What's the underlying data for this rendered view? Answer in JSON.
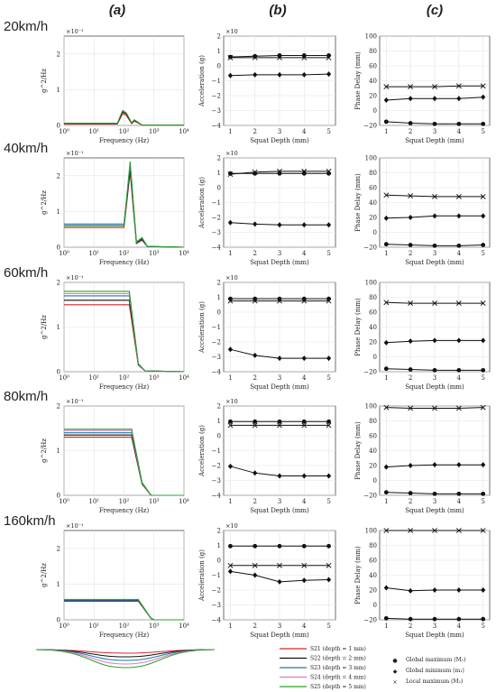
{
  "column_headers": [
    "(a)",
    "(b)",
    "(c)"
  ],
  "row_labels": [
    "20km/h",
    "40km/h",
    "60km/h",
    "80km/h",
    "160km/h"
  ],
  "axes": {
    "a": {
      "xlabel": "Frequency (Hz)",
      "ylabel": "g^2/Hz",
      "exponent": "×10⁻¹",
      "yticks": [
        "0",
        "1",
        "2"
      ],
      "xticks": [
        "10⁰",
        "10¹",
        "10²",
        "10³",
        "10⁴"
      ]
    },
    "b": {
      "xlabel": "Squat Depth (mm)",
      "ylabel": "Acceleration (g)",
      "exponent": "×10",
      "yticks": [
        "−4",
        "−3",
        "−2",
        "−1",
        "0",
        "1",
        "2"
      ],
      "xticks": [
        "1",
        "2",
        "3",
        "4",
        "5"
      ]
    },
    "c": {
      "xlabel": "Squat Depth (mm)",
      "ylabel": "Phase Delay (mm)",
      "yticks": [
        "−20",
        "0",
        "20",
        "40",
        "60",
        "80",
        "100"
      ],
      "xticks": [
        "1",
        "2",
        "3",
        "4",
        "5"
      ]
    }
  },
  "legend": {
    "series": [
      {
        "label": "S21 (depth = 1 mm)",
        "color": "#d62728"
      },
      {
        "label": "S22 (depth = 2 mm)",
        "color": "#111111"
      },
      {
        "label": "S23 (depth = 3 mm)",
        "color": "#1f77b4"
      },
      {
        "label": "S24 (depth = 4 mm)",
        "color": "#e377c2"
      },
      {
        "label": "S25 (depth = 5 mm)",
        "color": "#2ca02c"
      }
    ],
    "markers": [
      {
        "symbol": "●",
        "label": "Global maximum (M₁)"
      },
      {
        "symbol": "◆",
        "label": "Global minimum (m₁)"
      },
      {
        "symbol": "×",
        "label": "Local maximum (M₂)"
      }
    ]
  },
  "chart_data": [
    {
      "type": "line",
      "panel": "(a) 20km/h",
      "xscale": "log",
      "xlim": [
        1,
        10000
      ],
      "ylim": [
        0,
        2.5
      ],
      "series": [
        {
          "name": "S21 (depth = 1 mm)",
          "x": [
            1,
            60,
            90,
            120,
            180,
            220,
            400,
            10000
          ],
          "y": [
            0.04,
            0.04,
            0.33,
            0.28,
            0.05,
            0.12,
            0.01,
            0.01
          ]
        },
        {
          "name": "S22 (depth = 2 mm)",
          "x": [
            1,
            60,
            90,
            120,
            180,
            220,
            400,
            10000
          ],
          "y": [
            0.05,
            0.05,
            0.38,
            0.32,
            0.06,
            0.15,
            0.01,
            0.01
          ]
        },
        {
          "name": "S25 (depth = 5 mm)",
          "x": [
            1,
            60,
            90,
            120,
            180,
            220,
            400,
            10000
          ],
          "y": [
            0.06,
            0.06,
            0.42,
            0.35,
            0.07,
            0.16,
            0.01,
            0.01
          ]
        }
      ]
    },
    {
      "type": "line",
      "panel": "(a) 40km/h",
      "xscale": "log",
      "xlim": [
        1,
        10000
      ],
      "ylim": [
        0,
        2.5
      ],
      "series": [
        {
          "name": "S21 (depth = 1 mm)",
          "x": [
            1,
            100,
            160,
            260,
            400,
            600,
            10000
          ],
          "y": [
            0.55,
            0.55,
            2.1,
            0.1,
            0.2,
            0.02,
            0.0
          ]
        },
        {
          "name": "S22 (depth = 2 mm)",
          "x": [
            1,
            100,
            160,
            260,
            400,
            600,
            10000
          ],
          "y": [
            0.6,
            0.6,
            2.2,
            0.12,
            0.22,
            0.02,
            0.0
          ]
        },
        {
          "name": "S23 (depth = 3 mm)",
          "x": [
            1,
            100,
            160,
            260,
            400,
            600,
            10000
          ],
          "y": [
            0.65,
            0.65,
            2.3,
            0.13,
            0.25,
            0.02,
            0.0
          ]
        },
        {
          "name": "S25 (depth = 5 mm)",
          "x": [
            1,
            100,
            160,
            260,
            400,
            600,
            10000
          ],
          "y": [
            0.6,
            0.6,
            2.4,
            0.15,
            0.27,
            0.02,
            0.0
          ]
        }
      ]
    },
    {
      "type": "line",
      "panel": "(a) 60km/h",
      "xscale": "log",
      "xlim": [
        1,
        10000
      ],
      "ylim": [
        0,
        2.0
      ],
      "series": [
        {
          "name": "S21 (depth = 1 mm)",
          "x": [
            1,
            150,
            300,
            500,
            10000
          ],
          "y": [
            1.5,
            1.5,
            0.15,
            0.02,
            0.0
          ]
        },
        {
          "name": "S22 (depth = 2 mm)",
          "x": [
            1,
            150,
            300,
            500,
            10000
          ],
          "y": [
            1.6,
            1.6,
            0.16,
            0.02,
            0.0
          ]
        },
        {
          "name": "S23 (depth = 3 mm)",
          "x": [
            1,
            150,
            300,
            500,
            10000
          ],
          "y": [
            1.7,
            1.7,
            0.17,
            0.02,
            0.0
          ]
        },
        {
          "name": "S24 (depth = 4 mm)",
          "x": [
            1,
            150,
            300,
            500,
            10000
          ],
          "y": [
            1.75,
            1.75,
            0.18,
            0.02,
            0.0
          ]
        },
        {
          "name": "S25 (depth = 5 mm)",
          "x": [
            1,
            150,
            300,
            500,
            10000
          ],
          "y": [
            1.8,
            1.8,
            0.18,
            0.02,
            0.0
          ]
        }
      ]
    },
    {
      "type": "line",
      "panel": "(a) 80km/h",
      "xscale": "log",
      "xlim": [
        1,
        10000
      ],
      "ylim": [
        0,
        2.0
      ],
      "series": [
        {
          "name": "S21 (depth = 1 mm)",
          "x": [
            1,
            180,
            400,
            800,
            10000
          ],
          "y": [
            1.3,
            1.3,
            0.25,
            0.0,
            0.0
          ]
        },
        {
          "name": "S22 (depth = 2 mm)",
          "x": [
            1,
            180,
            400,
            800,
            10000
          ],
          "y": [
            1.35,
            1.35,
            0.26,
            0.0,
            0.0
          ]
        },
        {
          "name": "S23 (depth = 3 mm)",
          "x": [
            1,
            180,
            400,
            800,
            10000
          ],
          "y": [
            1.4,
            1.4,
            0.27,
            0.0,
            0.0
          ]
        },
        {
          "name": "S24 (depth = 4 mm)",
          "x": [
            1,
            180,
            400,
            800,
            10000
          ],
          "y": [
            1.45,
            1.45,
            0.28,
            0.0,
            0.0
          ]
        },
        {
          "name": "S25 (depth = 5 mm)",
          "x": [
            1,
            180,
            400,
            800,
            10000
          ],
          "y": [
            1.48,
            1.48,
            0.29,
            0.0,
            0.0
          ]
        }
      ]
    },
    {
      "type": "line",
      "panel": "(a) 160km/h",
      "xscale": "log",
      "xlim": [
        1,
        10000
      ],
      "ylim": [
        0,
        2.5
      ],
      "series": [
        {
          "name": "S21 (depth = 1 mm)",
          "x": [
            1,
            300,
            800,
            1000,
            10000
          ],
          "y": [
            0.52,
            0.52,
            0.04,
            0.0,
            0.0
          ]
        },
        {
          "name": "S22 (depth = 2 mm)",
          "x": [
            1,
            300,
            800,
            1000,
            10000
          ],
          "y": [
            0.54,
            0.54,
            0.04,
            0.0,
            0.0
          ]
        },
        {
          "name": "S23 (depth = 3 mm)",
          "x": [
            1,
            300,
            800,
            1000,
            10000
          ],
          "y": [
            0.55,
            0.55,
            0.04,
            0.0,
            0.0
          ]
        },
        {
          "name": "S25 (depth = 5 mm)",
          "x": [
            1,
            300,
            800,
            1000,
            10000
          ],
          "y": [
            0.57,
            0.57,
            0.04,
            0.0,
            0.0
          ]
        }
      ]
    },
    {
      "type": "line",
      "panel": "(b) 20km/h",
      "xlim": [
        1,
        5
      ],
      "ylim": [
        -4,
        2
      ],
      "x": [
        1,
        2,
        3,
        4,
        5
      ],
      "series": [
        {
          "name": "Global maximum (M₁)",
          "marker": "circle",
          "values": [
            0.6,
            0.65,
            0.7,
            0.7,
            0.7
          ]
        },
        {
          "name": "Global minimum (m₁)",
          "marker": "diamond",
          "values": [
            -0.65,
            -0.6,
            -0.6,
            -0.6,
            -0.55
          ]
        },
        {
          "name": "Local maximum (M₂)",
          "marker": "x",
          "values": [
            0.55,
            0.55,
            0.55,
            0.55,
            0.55
          ]
        }
      ]
    },
    {
      "type": "line",
      "panel": "(b) 40km/h",
      "xlim": [
        1,
        5
      ],
      "ylim": [
        -4,
        2
      ],
      "x": [
        1,
        2,
        3,
        4,
        5
      ],
      "series": [
        {
          "name": "Global maximum (M₁)",
          "marker": "circle",
          "values": [
            0.95,
            0.95,
            0.95,
            0.95,
            0.95
          ]
        },
        {
          "name": "Global minimum (m₁)",
          "marker": "diamond",
          "values": [
            -2.35,
            -2.45,
            -2.5,
            -2.5,
            -2.5
          ]
        },
        {
          "name": "Local maximum (M₂)",
          "marker": "x",
          "values": [
            0.9,
            1.05,
            1.1,
            1.1,
            1.1
          ]
        }
      ]
    },
    {
      "type": "line",
      "panel": "(b) 60km/h",
      "xlim": [
        1,
        5
      ],
      "ylim": [
        -4,
        2
      ],
      "x": [
        1,
        2,
        3,
        4,
        5
      ],
      "series": [
        {
          "name": "Global maximum (M₁)",
          "marker": "circle",
          "values": [
            0.9,
            0.9,
            0.9,
            0.9,
            0.9
          ]
        },
        {
          "name": "Global minimum (m₁)",
          "marker": "diamond",
          "values": [
            -2.5,
            -2.9,
            -3.1,
            -3.1,
            -3.1
          ]
        },
        {
          "name": "Local maximum (M₂)",
          "marker": "x",
          "values": [
            0.75,
            0.75,
            0.75,
            0.75,
            0.75
          ]
        }
      ]
    },
    {
      "type": "line",
      "panel": "(b) 80km/h",
      "xlim": [
        1,
        5
      ],
      "ylim": [
        -4,
        2
      ],
      "x": [
        1,
        2,
        3,
        4,
        5
      ],
      "series": [
        {
          "name": "Global maximum (M₁)",
          "marker": "circle",
          "values": [
            0.95,
            0.95,
            0.95,
            0.95,
            0.95
          ]
        },
        {
          "name": "Global minimum (m₁)",
          "marker": "diamond",
          "values": [
            -2.05,
            -2.5,
            -2.7,
            -2.7,
            -2.7
          ]
        },
        {
          "name": "Local maximum (M₂)",
          "marker": "x",
          "values": [
            0.7,
            0.7,
            0.7,
            0.7,
            0.7
          ]
        }
      ]
    },
    {
      "type": "line",
      "panel": "(b) 160km/h",
      "xlim": [
        1,
        5
      ],
      "ylim": [
        -4,
        2
      ],
      "x": [
        1,
        2,
        3,
        4,
        5
      ],
      "series": [
        {
          "name": "Global maximum (M₁)",
          "marker": "circle",
          "values": [
            0.95,
            0.95,
            0.95,
            0.95,
            0.95
          ]
        },
        {
          "name": "Global minimum (m₁)",
          "marker": "diamond",
          "values": [
            -0.75,
            -1.0,
            -1.45,
            -1.35,
            -1.3
          ]
        },
        {
          "name": "Local maximum (M₂)",
          "marker": "x",
          "values": [
            -0.35,
            -0.35,
            -0.35,
            -0.35,
            -0.35
          ]
        }
      ]
    },
    {
      "type": "line",
      "panel": "(c) 20km/h",
      "xlim": [
        1,
        5
      ],
      "ylim": [
        -20,
        100
      ],
      "x": [
        1,
        2,
        3,
        4,
        5
      ],
      "series": [
        {
          "name": "Global maximum (M₁)",
          "marker": "circle",
          "values": [
            -15,
            -17,
            -18,
            -18,
            -18
          ]
        },
        {
          "name": "Global minimum (m₁)",
          "marker": "diamond",
          "values": [
            14,
            16,
            16,
            16,
            18
          ]
        },
        {
          "name": "Local maximum (M₂)",
          "marker": "x",
          "values": [
            32,
            32,
            32,
            33,
            33
          ]
        }
      ]
    },
    {
      "type": "line",
      "panel": "(c) 40km/h",
      "xlim": [
        1,
        5
      ],
      "ylim": [
        -20,
        100
      ],
      "x": [
        1,
        2,
        3,
        4,
        5
      ],
      "series": [
        {
          "name": "Global maximum (M₁)",
          "marker": "circle",
          "values": [
            -16,
            -17,
            -18,
            -18,
            -17
          ]
        },
        {
          "name": "Global minimum (m₁)",
          "marker": "diamond",
          "values": [
            19,
            20,
            22,
            22,
            22
          ]
        },
        {
          "name": "Local maximum (M₂)",
          "marker": "x",
          "values": [
            50,
            49,
            48,
            48,
            48
          ]
        }
      ]
    },
    {
      "type": "line",
      "panel": "(c) 60km/h",
      "xlim": [
        1,
        5
      ],
      "ylim": [
        -20,
        100
      ],
      "x": [
        1,
        2,
        3,
        4,
        5
      ],
      "series": [
        {
          "name": "Global maximum (M₁)",
          "marker": "circle",
          "values": [
            -16,
            -17,
            -18,
            -18,
            -18
          ]
        },
        {
          "name": "Global minimum (m₁)",
          "marker": "diamond",
          "values": [
            19,
            21,
            22,
            22,
            22
          ]
        },
        {
          "name": "Local maximum (M₂)",
          "marker": "x",
          "values": [
            73,
            72,
            72,
            72,
            72
          ]
        }
      ]
    },
    {
      "type": "line",
      "panel": "(c) 80km/h",
      "xlim": [
        1,
        5
      ],
      "ylim": [
        -20,
        100
      ],
      "x": [
        1,
        2,
        3,
        4,
        5
      ],
      "series": [
        {
          "name": "Global maximum (M₁)",
          "marker": "circle",
          "values": [
            -16,
            -17,
            -18,
            -18,
            -18
          ]
        },
        {
          "name": "Global minimum (m₁)",
          "marker": "diamond",
          "values": [
            18,
            20,
            21,
            21,
            21
          ]
        },
        {
          "name": "Local maximum (M₂)",
          "marker": "x",
          "values": [
            98,
            97,
            97,
            97,
            98
          ]
        }
      ]
    },
    {
      "type": "line",
      "panel": "(c) 160km/h",
      "xlim": [
        1,
        5
      ],
      "ylim": [
        -20,
        100
      ],
      "x": [
        1,
        2,
        3,
        4,
        5
      ],
      "series": [
        {
          "name": "Global maximum (M₁)",
          "marker": "circle",
          "values": [
            -18,
            -19,
            -19,
            -19,
            -19
          ]
        },
        {
          "name": "Global minimum (m₁)",
          "marker": "diamond",
          "values": [
            23,
            19,
            20,
            20,
            20
          ]
        },
        {
          "name": "Local maximum (M₂)",
          "marker": "x",
          "values": [
            100,
            100,
            100,
            100,
            100
          ]
        }
      ]
    }
  ]
}
